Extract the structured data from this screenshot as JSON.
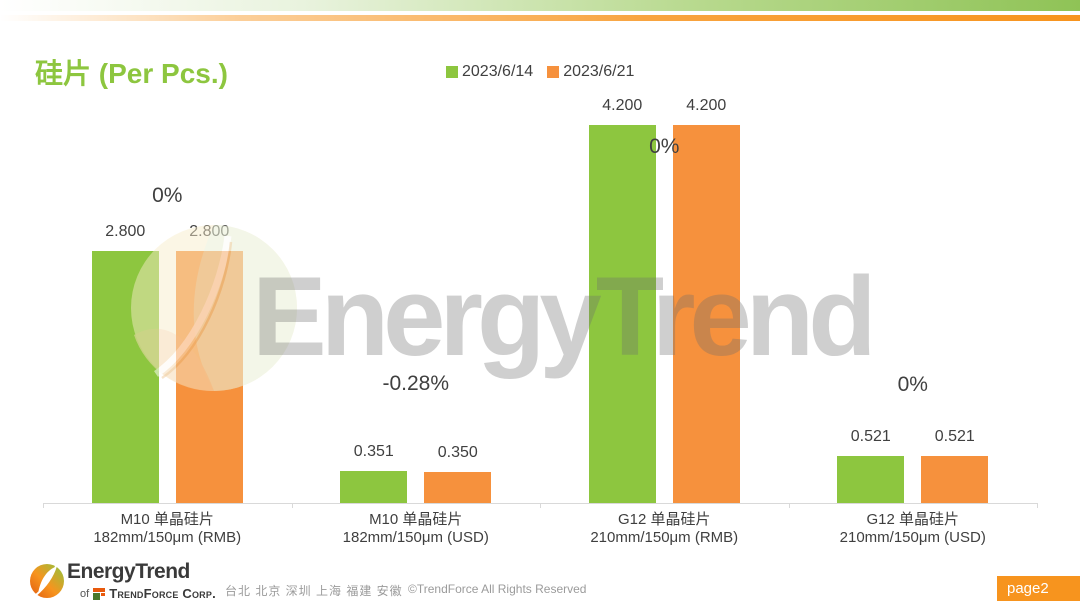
{
  "slide": {
    "title": "硅片 (Per Pcs.)",
    "watermark_text": "EnergyTrend",
    "footer": {
      "logo_text": "EnergyTrend",
      "logo_sub_prefix": "of",
      "logo_sub_name": "TrendForce Corp.",
      "cities": "台北 北京 深圳 上海 福建 安徽",
      "copyright": "©TrendForce All Rights Reserved",
      "page_badge": "page2"
    }
  },
  "colors": {
    "series_green": "#8dc63f",
    "series_orange": "#f6913d",
    "title_green": "#8dc63f",
    "badge_orange": "#f7941e",
    "axis_gray": "#d9d9d9",
    "text_dark": "#404040"
  },
  "chart_data": {
    "type": "bar",
    "title": "硅片 (Per Pcs.)",
    "xlabel": "",
    "ylabel": "",
    "ylim": [
      0,
      4.4
    ],
    "grid": false,
    "y_axis_visible": false,
    "legend_position": "top-center",
    "categories": [
      {
        "line1": "M10 单晶硅片",
        "line2": "182mm/150μm (RMB)"
      },
      {
        "line1": "M10 单晶硅片",
        "line2": "182mm/150μm (USD)"
      },
      {
        "line1": "G12 单晶硅片",
        "line2": "210mm/150μm (RMB)"
      },
      {
        "line1": "G12 单晶硅片",
        "line2": "210mm/150μm (USD)"
      }
    ],
    "series": [
      {
        "name": "2023/6/14",
        "color": "#8dc63f",
        "values": [
          2.8,
          0.351,
          4.2,
          0.521
        ],
        "labels": [
          "2.800",
          "0.351",
          "4.200",
          "0.521"
        ]
      },
      {
        "name": "2023/6/21",
        "color": "#f6913d",
        "values": [
          2.8,
          0.35,
          4.2,
          0.521
        ],
        "labels": [
          "2.800",
          "0.350",
          "4.200",
          "0.521"
        ]
      }
    ],
    "change_labels": [
      "0%",
      "-0.28%",
      "0%",
      "0%"
    ]
  }
}
